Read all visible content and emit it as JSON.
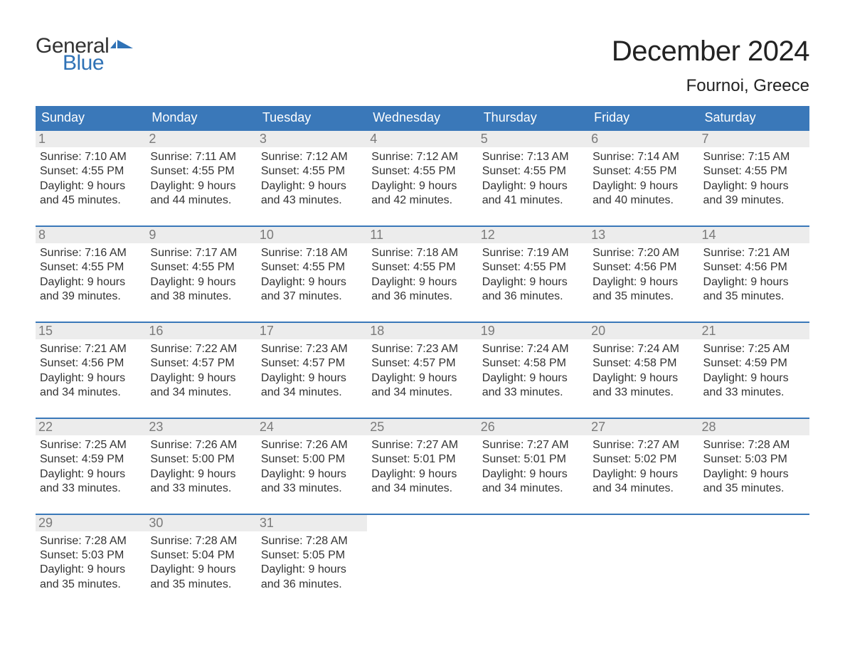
{
  "colors": {
    "header_bg": "#3a78b9",
    "header_text": "#ffffff",
    "daynum_bg": "#ececec",
    "daynum_text": "#7a7a7a",
    "body_text": "#333333",
    "logo_general": "#333333",
    "logo_blue": "#2f72b6",
    "page_bg": "#ffffff",
    "week_top_border": "#3a78b9"
  },
  "logo": {
    "word1": "General",
    "word2": "Blue"
  },
  "title": "December 2024",
  "subtitle": "Fournoi, Greece",
  "weekdays": [
    "Sunday",
    "Monday",
    "Tuesday",
    "Wednesday",
    "Thursday",
    "Friday",
    "Saturday"
  ],
  "weeks": [
    [
      {
        "n": "1",
        "sr": "7:10 AM",
        "ss": "4:55 PM",
        "dl": "9 hours\nand 45 minutes."
      },
      {
        "n": "2",
        "sr": "7:11 AM",
        "ss": "4:55 PM",
        "dl": "9 hours\nand 44 minutes."
      },
      {
        "n": "3",
        "sr": "7:12 AM",
        "ss": "4:55 PM",
        "dl": "9 hours\nand 43 minutes."
      },
      {
        "n": "4",
        "sr": "7:12 AM",
        "ss": "4:55 PM",
        "dl": "9 hours\nand 42 minutes."
      },
      {
        "n": "5",
        "sr": "7:13 AM",
        "ss": "4:55 PM",
        "dl": "9 hours\nand 41 minutes."
      },
      {
        "n": "6",
        "sr": "7:14 AM",
        "ss": "4:55 PM",
        "dl": "9 hours\nand 40 minutes."
      },
      {
        "n": "7",
        "sr": "7:15 AM",
        "ss": "4:55 PM",
        "dl": "9 hours\nand 39 minutes."
      }
    ],
    [
      {
        "n": "8",
        "sr": "7:16 AM",
        "ss": "4:55 PM",
        "dl": "9 hours\nand 39 minutes."
      },
      {
        "n": "9",
        "sr": "7:17 AM",
        "ss": "4:55 PM",
        "dl": "9 hours\nand 38 minutes."
      },
      {
        "n": "10",
        "sr": "7:18 AM",
        "ss": "4:55 PM",
        "dl": "9 hours\nand 37 minutes."
      },
      {
        "n": "11",
        "sr": "7:18 AM",
        "ss": "4:55 PM",
        "dl": "9 hours\nand 36 minutes."
      },
      {
        "n": "12",
        "sr": "7:19 AM",
        "ss": "4:55 PM",
        "dl": "9 hours\nand 36 minutes."
      },
      {
        "n": "13",
        "sr": "7:20 AM",
        "ss": "4:56 PM",
        "dl": "9 hours\nand 35 minutes."
      },
      {
        "n": "14",
        "sr": "7:21 AM",
        "ss": "4:56 PM",
        "dl": "9 hours\nand 35 minutes."
      }
    ],
    [
      {
        "n": "15",
        "sr": "7:21 AM",
        "ss": "4:56 PM",
        "dl": "9 hours\nand 34 minutes."
      },
      {
        "n": "16",
        "sr": "7:22 AM",
        "ss": "4:57 PM",
        "dl": "9 hours\nand 34 minutes."
      },
      {
        "n": "17",
        "sr": "7:23 AM",
        "ss": "4:57 PM",
        "dl": "9 hours\nand 34 minutes."
      },
      {
        "n": "18",
        "sr": "7:23 AM",
        "ss": "4:57 PM",
        "dl": "9 hours\nand 34 minutes."
      },
      {
        "n": "19",
        "sr": "7:24 AM",
        "ss": "4:58 PM",
        "dl": "9 hours\nand 33 minutes."
      },
      {
        "n": "20",
        "sr": "7:24 AM",
        "ss": "4:58 PM",
        "dl": "9 hours\nand 33 minutes."
      },
      {
        "n": "21",
        "sr": "7:25 AM",
        "ss": "4:59 PM",
        "dl": "9 hours\nand 33 minutes."
      }
    ],
    [
      {
        "n": "22",
        "sr": "7:25 AM",
        "ss": "4:59 PM",
        "dl": "9 hours\nand 33 minutes."
      },
      {
        "n": "23",
        "sr": "7:26 AM",
        "ss": "5:00 PM",
        "dl": "9 hours\nand 33 minutes."
      },
      {
        "n": "24",
        "sr": "7:26 AM",
        "ss": "5:00 PM",
        "dl": "9 hours\nand 33 minutes."
      },
      {
        "n": "25",
        "sr": "7:27 AM",
        "ss": "5:01 PM",
        "dl": "9 hours\nand 34 minutes."
      },
      {
        "n": "26",
        "sr": "7:27 AM",
        "ss": "5:01 PM",
        "dl": "9 hours\nand 34 minutes."
      },
      {
        "n": "27",
        "sr": "7:27 AM",
        "ss": "5:02 PM",
        "dl": "9 hours\nand 34 minutes."
      },
      {
        "n": "28",
        "sr": "7:28 AM",
        "ss": "5:03 PM",
        "dl": "9 hours\nand 35 minutes."
      }
    ],
    [
      {
        "n": "29",
        "sr": "7:28 AM",
        "ss": "5:03 PM",
        "dl": "9 hours\nand 35 minutes."
      },
      {
        "n": "30",
        "sr": "7:28 AM",
        "ss": "5:04 PM",
        "dl": "9 hours\nand 35 minutes."
      },
      {
        "n": "31",
        "sr": "7:28 AM",
        "ss": "5:05 PM",
        "dl": "9 hours\nand 36 minutes."
      },
      null,
      null,
      null,
      null
    ]
  ],
  "labels": {
    "sunrise": "Sunrise:",
    "sunset": "Sunset:",
    "daylight": "Daylight:"
  }
}
